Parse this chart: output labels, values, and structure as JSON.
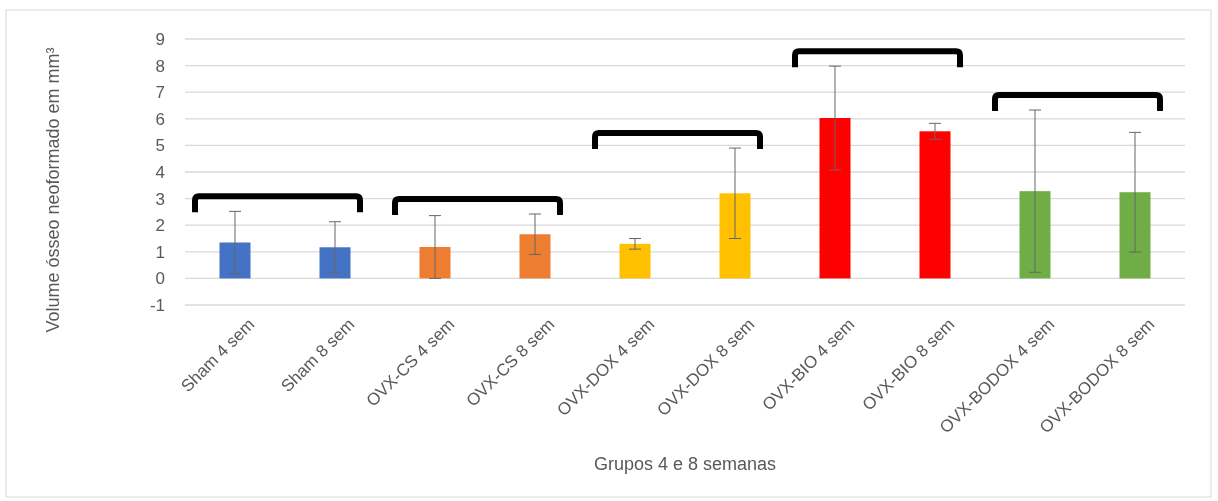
{
  "chart_data": {
    "type": "bar",
    "xlabel": "Grupos 4 e 8 semanas",
    "ylabel": "Volume ósseo neoformado em mm³",
    "categories": [
      "Sham 4 sem",
      "Sham 8 sem",
      "OVX-CS 4 sem",
      "OVX-CS 8 sem",
      "OVX-DOX 4 sem",
      "OVX-DOX 8 sem",
      "OVX-BIO 4 sem",
      "OVX-BIO 8 sem",
      "OVX-BODOX 4 sem",
      "OVX-BODOX 8 sem"
    ],
    "values": [
      1.35,
      1.17,
      1.18,
      1.66,
      1.3,
      3.2,
      6.03,
      5.53,
      3.28,
      3.24
    ],
    "errors": [
      1.17,
      0.96,
      1.18,
      0.76,
      0.2,
      1.7,
      1.95,
      0.3,
      3.05,
      2.25
    ],
    "colors": [
      "#4472c4",
      "#4472c4",
      "#ed7d31",
      "#ed7d31",
      "#ffc000",
      "#ffc000",
      "#ff0000",
      "#ff0000",
      "#70ad47",
      "#70ad47"
    ],
    "ylim": [
      -1,
      9
    ],
    "yticks": [
      -1,
      0,
      1,
      2,
      3,
      4,
      5,
      6,
      7,
      8,
      9
    ],
    "grid": "y"
  }
}
